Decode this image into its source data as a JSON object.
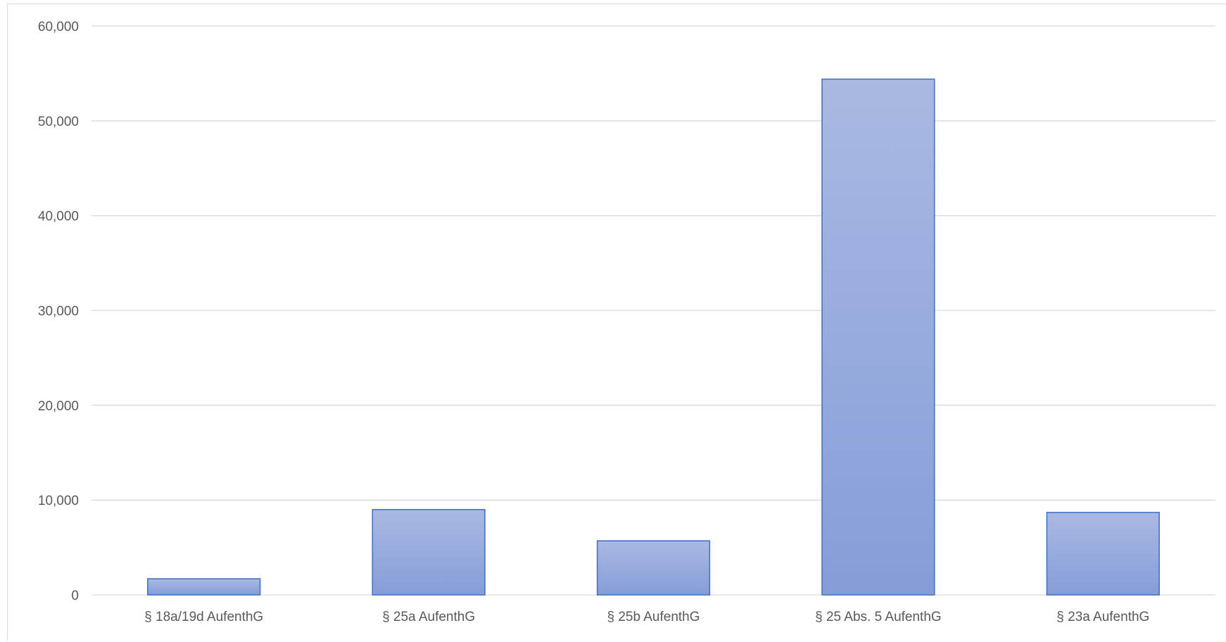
{
  "chart_data": {
    "type": "bar",
    "title": "",
    "xlabel": "",
    "ylabel": "",
    "categories": [
      "§ 18a/19d AufenthG",
      "§ 25a AufenthG",
      "§ 25b AufenthG",
      "§ 25 Abs. 5 AufenthG",
      "§ 23a AufenthG"
    ],
    "values": [
      1700,
      9000,
      5700,
      54400,
      8700
    ],
    "ylim": [
      0,
      60000
    ],
    "yticks": [
      0,
      10000,
      20000,
      30000,
      40000,
      50000,
      60000
    ],
    "ytick_labels": [
      "0",
      "10,000",
      "20,000",
      "30,000",
      "40,000",
      "50,000",
      "60,000"
    ],
    "grid": true,
    "legend": "none",
    "colors": {
      "bar_fill_top": "#aab9e3",
      "bar_fill_bottom": "#859dd8",
      "bar_stroke": "#4472c4",
      "grid": "#d9d9d9",
      "text": "#595959"
    }
  }
}
